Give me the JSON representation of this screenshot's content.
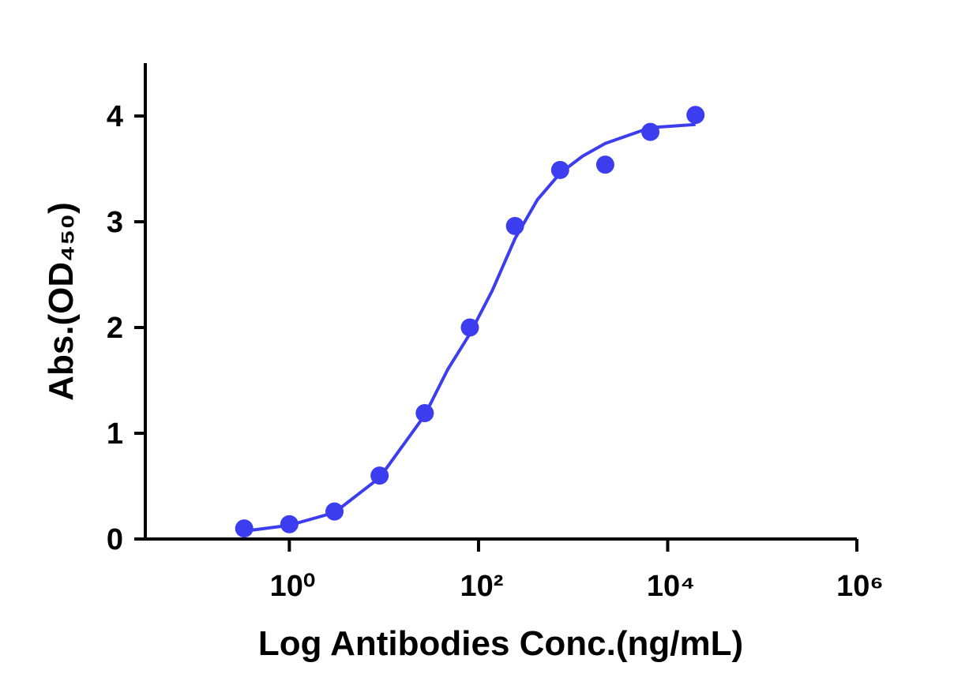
{
  "chart_data": {
    "type": "scatter",
    "x_label": "Log Antibodies Conc.(ng/mL)",
    "y_label": "Abs.(OD₄₅₀)",
    "log_x": true,
    "color": "#3d3df0",
    "xlim": [
      0.03,
      1000000
    ],
    "ylim": [
      0,
      4.5
    ],
    "xticks": [
      {
        "value": 1,
        "label": "10⁰"
      },
      {
        "value": 100,
        "label": "10²"
      },
      {
        "value": 10000,
        "label": "10⁴"
      },
      {
        "value": 1000000,
        "label": "10⁶"
      }
    ],
    "yticks": [
      0,
      1,
      2,
      3,
      4
    ],
    "points": {
      "x": [
        0.333,
        1,
        3,
        9,
        27,
        81,
        243,
        729,
        2187,
        6561,
        19683
      ],
      "y": [
        0.1,
        0.14,
        0.26,
        0.6,
        1.19,
        2.0,
        2.96,
        3.49,
        3.54,
        3.85,
        4.01
      ]
    },
    "curve": {
      "x": [
        0.333,
        1,
        3,
        9,
        27,
        47,
        81,
        140,
        243,
        420,
        729,
        1260,
        2187,
        6561,
        19683
      ],
      "y": [
        0.075,
        0.13,
        0.25,
        0.58,
        1.17,
        1.6,
        1.94,
        2.35,
        2.84,
        3.21,
        3.46,
        3.62,
        3.74,
        3.89,
        3.92
      ]
    }
  }
}
